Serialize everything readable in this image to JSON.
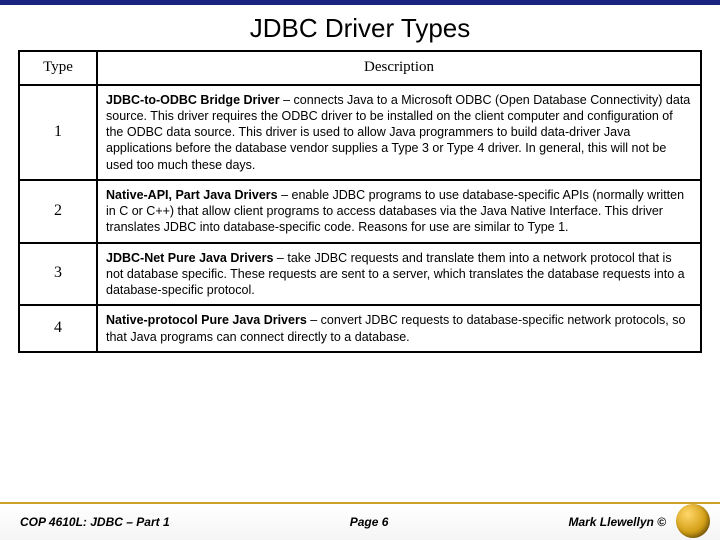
{
  "title": "JDBC Driver Types",
  "columns": {
    "type": "Type",
    "desc": "Description"
  },
  "rows": [
    {
      "type": "1",
      "name": "JDBC-to-ODBC Bridge Driver",
      "body": " – connects Java to a Microsoft ODBC (Open Database Connectivity) data source. This driver requires the ODBC driver to be installed on the client computer and configuration of the ODBC data source. This driver is used to allow Java programmers to build data-driver Java applications before the database vendor supplies a Type 3 or Type 4 driver. In general, this will not be used too much these days."
    },
    {
      "type": "2",
      "name": "Native-API, Part Java Drivers",
      "body": " – enable JDBC programs to use database-specific APIs (normally written in C or C++) that allow client programs to access databases via the Java Native Interface. This driver translates JDBC into database-specific code. Reasons for use are similar to Type 1."
    },
    {
      "type": "3",
      "name": "JDBC-Net Pure Java Drivers",
      "body": " – take JDBC requests and translate them into a network protocol that is not database specific. These requests are sent to a server, which translates the database requests into a database-specific protocol."
    },
    {
      "type": "4",
      "name": "Native-protocol Pure Java Drivers",
      "body": " – convert JDBC requests to database-specific network protocols, so that Java programs can connect directly to a database."
    }
  ],
  "footer": {
    "left": "COP 4610L: JDBC – Part 1",
    "center": "Page 6",
    "right": "Mark Llewellyn ©"
  },
  "style": {
    "accent_top": "#1a237e",
    "gold_rule": "#c9a227",
    "logo_gradient": [
      "#ffd76a",
      "#d4a017",
      "#7a5a05"
    ]
  }
}
